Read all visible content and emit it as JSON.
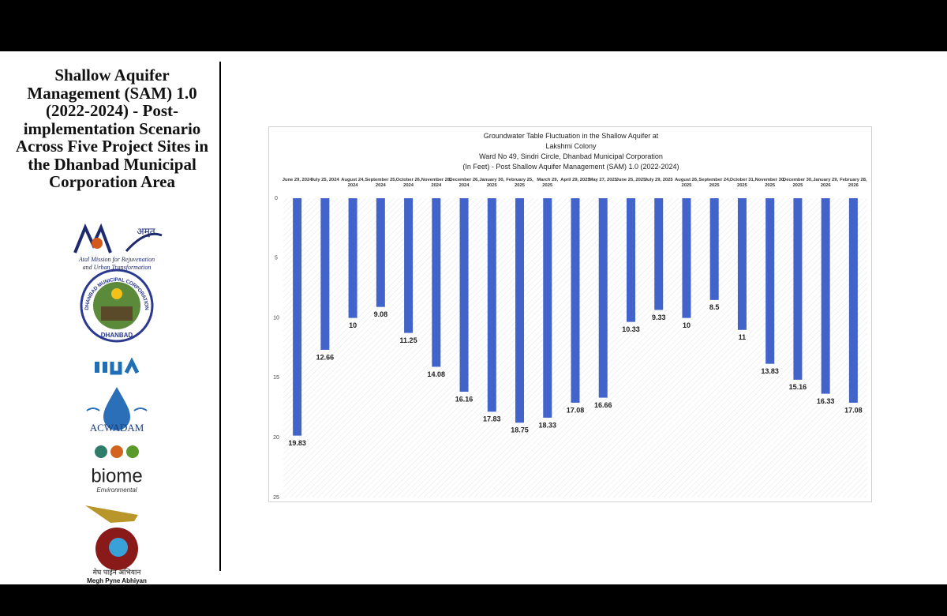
{
  "sidebar": {
    "title": "Shallow Aquifer Management (SAM) 1.0 (2022-2024) - Post-implementation Scenario Across Five Project Sites in the Dhanbad Municipal Corporation Area",
    "logos": [
      "अमृत",
      "Atal Mission for Rejuvenation",
      "and Urban Transformation",
      "DHANBAD MUNICIPAL CORPORATION",
      "DHANBAD",
      "ACWADAM",
      "biome",
      "Environmental",
      "मेघ पाईन अभियान",
      "Megh Pyne Abhiyan"
    ]
  },
  "chart_data": {
    "type": "bar",
    "title": [
      "Groundwater Table Fluctuation in the Shallow Aquifer at",
      "Lakshmi Colony",
      "Ward No 49, Sindri Circle, Dhanbad Municipal Corporation",
      "(In Feet) - Post Shallow Aquifer Management (SAM) 1.0 (2022-2024)"
    ],
    "categories": [
      "June 29, 2024",
      "July 25, 2024",
      "August 24, 2024",
      "September 25, 2024",
      "October 26, 2024",
      "November 28, 2024",
      "December 26, 2024",
      "January 30, 2025",
      "February 25, 2025",
      "March 29, 2025",
      "April 29, 2025",
      "May 27, 2025",
      "June 25, 2025",
      "July 29, 2025",
      "August 26, 2025",
      "September 24, 2025",
      "October 31, 2025",
      "November 30, 2025",
      "December 30, 2025",
      "January 29, 2026",
      "February 28, 2026"
    ],
    "values": [
      19.83,
      12.66,
      10,
      9.08,
      11.25,
      14.08,
      16.16,
      17.83,
      18.75,
      18.33,
      17.08,
      16.66,
      10.33,
      9.33,
      10,
      8.5,
      11,
      13.83,
      15.16,
      16.33,
      17.08
    ],
    "color": "#4263c9",
    "ylim": [
      0,
      25
    ],
    "yticks": [
      0,
      5,
      10,
      15,
      20,
      25
    ],
    "y_inverted": true,
    "grid": false
  }
}
